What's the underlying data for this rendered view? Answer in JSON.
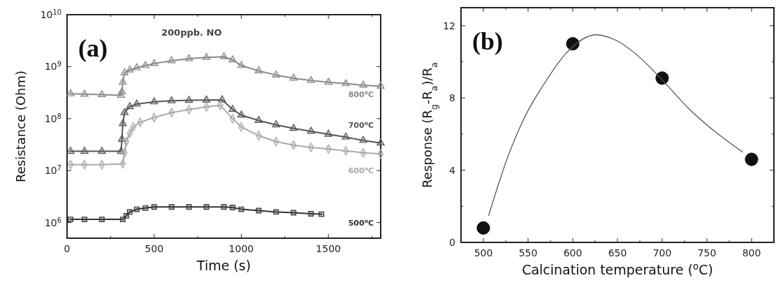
{
  "chart_data": [
    {
      "type": "line",
      "annotations": [
        "(a)",
        "200ppb. NO"
      ],
      "xlabel": "Time (s)",
      "ylabel": "Resistance (Ohm)",
      "log": "y",
      "xlim": [
        0,
        1800
      ],
      "xticks": [
        0,
        {
          "value": 250,
          "label": null
        },
        500,
        {
          "value": 750,
          "label": null
        },
        1000,
        {
          "value": 1250,
          "label": null
        },
        1500,
        {
          "value": 1750,
          "label": null
        }
      ],
      "ylim": [
        500000,
        10000000000
      ],
      "yticks": [
        {
          "value": 1000000,
          "label": "10$^{6}$"
        },
        {
          "value": 10000000,
          "label": "10$^{7}$"
        },
        {
          "value": 100000000,
          "label": "10$^{8}$"
        },
        {
          "value": 1000000000,
          "label": "10$^{9}$"
        },
        {
          "value": 10000000000,
          "label": "10$^{10}$"
        }
      ],
      "series": [
        {
          "name": "800$^{o}$C",
          "color": "#8a8a8a",
          "marker": "triangle",
          "x": [
            20,
            100,
            200,
            310,
            315,
            320,
            330,
            360,
            400,
            450,
            500,
            600,
            700,
            800,
            900,
            950,
            1000,
            1100,
            1200,
            1300,
            1400,
            1500,
            1600,
            1700,
            1800
          ],
          "values": [
            300000000,
            295000000,
            290000000,
            280000000,
            330000000,
            500000000,
            760000000,
            860000000,
            950000000,
            1050000000,
            1150000000,
            1300000000,
            1420000000,
            1500000000,
            1550000000,
            1350000000,
            1050000000,
            830000000,
            690000000,
            600000000,
            540000000,
            500000000,
            470000000,
            440000000,
            420000000
          ]
        },
        {
          "name": "700$^{o}$C",
          "color": "#555555",
          "marker": "triangle",
          "x": [
            20,
            100,
            200,
            310,
            315,
            320,
            330,
            360,
            400,
            500,
            600,
            700,
            800,
            890,
            950,
            1000,
            1100,
            1200,
            1300,
            1400,
            1500,
            1600,
            1700,
            1800
          ],
          "values": [
            23500000,
            23500000,
            23500000,
            23500000,
            40000000,
            80000000,
            130000000,
            170000000,
            190000000,
            210000000,
            220000000,
            225000000,
            228000000,
            230000000,
            150000000,
            117000000,
            92000000,
            76000000,
            65000000,
            57000000,
            50000000,
            44000000,
            38000000,
            34000000
          ]
        },
        {
          "name": "600$^{o}$C",
          "color": "#aaaaaa",
          "marker": "diamond",
          "x": [
            20,
            100,
            200,
            320,
            330,
            340,
            360,
            380,
            420,
            500,
            600,
            700,
            800,
            880,
            950,
            1000,
            1100,
            1200,
            1300,
            1400,
            1500,
            1600,
            1700,
            1800
          ],
          "values": [
            13000000,
            13000000,
            13000000,
            13500000,
            22000000,
            36000000,
            52000000,
            69000000,
            85000000,
            105000000,
            130000000,
            150000000,
            168000000,
            180000000,
            100000000,
            69000000,
            47000000,
            36000000,
            31000000,
            28000000,
            26000000,
            24000000,
            22000000,
            21000000
          ]
        },
        {
          "name": "500$^{o}$C",
          "color": "#333333",
          "marker": "square",
          "x": [
            20,
            100,
            200,
            320,
            340,
            360,
            400,
            450,
            500,
            600,
            700,
            800,
            900,
            950,
            1000,
            1100,
            1200,
            1300,
            1400,
            1460
          ],
          "values": [
            1150000,
            1150000,
            1150000,
            1150000,
            1350000,
            1600000,
            1800000,
            1900000,
            2000000,
            2000000,
            2000000,
            2000000,
            2000000,
            1950000,
            1800000,
            1700000,
            1600000,
            1550000,
            1480000,
            1450000
          ]
        }
      ]
    },
    {
      "type": "scatter",
      "annotations": [
        "(b)"
      ],
      "xlabel": "Calcination temperature ($^{o}$C)",
      "ylabel": "Response (R$_{g}$-R$_{a}$)/R$_{a}$",
      "xlim": [
        475,
        825
      ],
      "xticks": [
        500,
        {
          "value": 525,
          "label": null
        },
        550,
        {
          "value": 575,
          "label": null
        },
        600,
        {
          "value": 625,
          "label": null
        },
        650,
        {
          "value": 675,
          "label": null
        },
        700,
        {
          "value": 725,
          "label": null
        },
        750,
        {
          "value": 775,
          "label": null
        },
        800
      ],
      "ylim": [
        0,
        13
      ],
      "yticks": [
        0,
        {
          "value": 2,
          "label": null
        },
        4,
        {
          "value": 6,
          "label": null
        },
        8,
        {
          "value": 10,
          "label": null
        },
        12
      ],
      "series": [
        {
          "type": "scatter",
          "color": "#111111",
          "marker": "circle",
          "x": [
            500,
            600,
            700,
            800
          ],
          "values": [
            0.8,
            11.0,
            9.1,
            4.6
          ]
        },
        {
          "type": "line",
          "color": "#555555",
          "x": [
            506,
            526,
            550,
            565,
            593,
            626,
            648,
            676,
            700,
            732,
            760,
            790
          ],
          "values": [
            1.5,
            4.55,
            7.3,
            8.55,
            10.5,
            11.5,
            11.2,
            10.2,
            9.0,
            7.3,
            6.1,
            5.0
          ]
        }
      ]
    }
  ]
}
